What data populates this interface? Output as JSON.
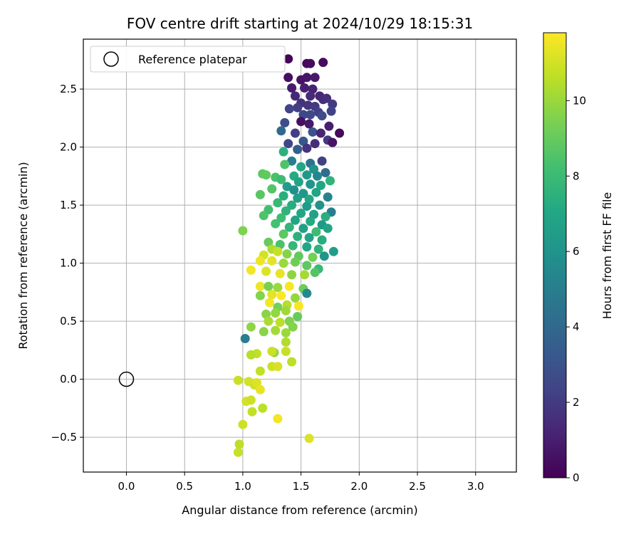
{
  "chart_data": {
    "type": "scatter",
    "title": "FOV centre drift starting at 2024/10/29 18:15:31",
    "xlabel": "Angular distance from reference (arcmin)",
    "ylabel": "Rotation from reference (arcmin)",
    "xlim": [
      -0.37,
      3.35
    ],
    "ylim": [
      -0.8,
      2.93
    ],
    "xticks": [
      "0.0",
      "0.5",
      "1.0",
      "1.5",
      "2.0",
      "2.5",
      "3.0"
    ],
    "xtick_values": [
      0.0,
      0.5,
      1.0,
      1.5,
      2.0,
      2.5,
      3.0
    ],
    "yticks": [
      "−0.5",
      "0.0",
      "0.5",
      "1.0",
      "1.5",
      "2.0",
      "2.5"
    ],
    "ytick_values": [
      -0.5,
      0.0,
      0.5,
      1.0,
      1.5,
      2.0,
      2.5
    ],
    "grid": true,
    "legend": {
      "position": "top-left",
      "entries": [
        "Reference platepar"
      ]
    },
    "reference_point": {
      "x": 0.0,
      "y": 0.0
    },
    "colorbar": {
      "label": "Hours from first FF file",
      "min": 0,
      "max": 11.8,
      "ticks": [
        "0",
        "2",
        "4",
        "6",
        "8",
        "10"
      ],
      "tick_values": [
        0,
        2,
        4,
        6,
        8,
        10
      ],
      "colormap": "viridis"
    },
    "points": [
      {
        "x": 1.39,
        "y": 2.76,
        "h": 0.1
      },
      {
        "x": 1.55,
        "y": 2.72,
        "h": 0.2
      },
      {
        "x": 1.58,
        "y": 2.72,
        "h": 0.3
      },
      {
        "x": 1.69,
        "y": 2.73,
        "h": 0.4
      },
      {
        "x": 1.39,
        "y": 2.6,
        "h": 0.5
      },
      {
        "x": 1.5,
        "y": 2.58,
        "h": 0.6
      },
      {
        "x": 1.55,
        "y": 2.6,
        "h": 0.7
      },
      {
        "x": 1.62,
        "y": 2.6,
        "h": 0.8
      },
      {
        "x": 1.42,
        "y": 2.51,
        "h": 0.9
      },
      {
        "x": 1.53,
        "y": 2.51,
        "h": 1.0
      },
      {
        "x": 1.6,
        "y": 2.5,
        "h": 1.1
      },
      {
        "x": 1.66,
        "y": 2.44,
        "h": 1.2
      },
      {
        "x": 1.45,
        "y": 2.44,
        "h": 1.3
      },
      {
        "x": 1.58,
        "y": 2.44,
        "h": 1.4
      },
      {
        "x": 1.69,
        "y": 2.41,
        "h": 1.5
      },
      {
        "x": 1.72,
        "y": 2.42,
        "h": 1.6
      },
      {
        "x": 1.5,
        "y": 2.38,
        "h": 1.7
      },
      {
        "x": 1.56,
        "y": 2.36,
        "h": 1.8
      },
      {
        "x": 1.62,
        "y": 2.35,
        "h": 1.9
      },
      {
        "x": 1.77,
        "y": 2.37,
        "h": 2.0
      },
      {
        "x": 1.47,
        "y": 2.34,
        "h": 2.1
      },
      {
        "x": 1.65,
        "y": 2.3,
        "h": 2.2
      },
      {
        "x": 1.76,
        "y": 2.31,
        "h": 2.3
      },
      {
        "x": 1.4,
        "y": 2.33,
        "h": 2.4
      },
      {
        "x": 1.52,
        "y": 2.28,
        "h": 2.5
      },
      {
        "x": 1.58,
        "y": 2.28,
        "h": 2.6
      },
      {
        "x": 1.68,
        "y": 2.27,
        "h": 2.7
      },
      {
        "x": 1.36,
        "y": 2.21,
        "h": 2.8
      },
      {
        "x": 1.5,
        "y": 2.22,
        "h": 0.5
      },
      {
        "x": 1.57,
        "y": 2.2,
        "h": 0.8
      },
      {
        "x": 1.74,
        "y": 2.18,
        "h": 1.0
      },
      {
        "x": 1.83,
        "y": 2.12,
        "h": 0.3
      },
      {
        "x": 1.33,
        "y": 2.14,
        "h": 4.0
      },
      {
        "x": 1.45,
        "y": 2.12,
        "h": 2.2
      },
      {
        "x": 1.6,
        "y": 2.13,
        "h": 3.0
      },
      {
        "x": 1.67,
        "y": 2.12,
        "h": 1.2
      },
      {
        "x": 1.39,
        "y": 2.03,
        "h": 2.5
      },
      {
        "x": 1.52,
        "y": 2.05,
        "h": 3.2
      },
      {
        "x": 1.62,
        "y": 2.03,
        "h": 1.5
      },
      {
        "x": 1.73,
        "y": 2.06,
        "h": 2.0
      },
      {
        "x": 1.77,
        "y": 2.04,
        "h": 0.6
      },
      {
        "x": 1.55,
        "y": 1.99,
        "h": 1.8
      },
      {
        "x": 1.47,
        "y": 1.98,
        "h": 3.5
      },
      {
        "x": 1.35,
        "y": 1.96,
        "h": 7.5
      },
      {
        "x": 1.42,
        "y": 1.88,
        "h": 5.0
      },
      {
        "x": 1.58,
        "y": 1.86,
        "h": 4.5
      },
      {
        "x": 1.68,
        "y": 1.88,
        "h": 2.2
      },
      {
        "x": 1.36,
        "y": 1.85,
        "h": 8.5
      },
      {
        "x": 1.5,
        "y": 1.83,
        "h": 7.0
      },
      {
        "x": 1.61,
        "y": 1.81,
        "h": 6.0
      },
      {
        "x": 1.71,
        "y": 1.78,
        "h": 4.2
      },
      {
        "x": 1.17,
        "y": 1.77,
        "h": 8.8
      },
      {
        "x": 1.28,
        "y": 1.74,
        "h": 8.4
      },
      {
        "x": 1.44,
        "y": 1.75,
        "h": 7.2
      },
      {
        "x": 1.55,
        "y": 1.76,
        "h": 6.3
      },
      {
        "x": 1.64,
        "y": 1.75,
        "h": 5.4
      },
      {
        "x": 1.75,
        "y": 1.71,
        "h": 7.6
      },
      {
        "x": 1.2,
        "y": 1.76,
        "h": 8.9
      },
      {
        "x": 1.33,
        "y": 1.72,
        "h": 8.0
      },
      {
        "x": 1.48,
        "y": 1.7,
        "h": 6.8
      },
      {
        "x": 1.58,
        "y": 1.68,
        "h": 6.1
      },
      {
        "x": 1.67,
        "y": 1.67,
        "h": 7.0
      },
      {
        "x": 1.38,
        "y": 1.66,
        "h": 6.5
      },
      {
        "x": 1.25,
        "y": 1.64,
        "h": 8.6
      },
      {
        "x": 1.44,
        "y": 1.63,
        "h": 5.8
      },
      {
        "x": 1.52,
        "y": 1.6,
        "h": 6.2
      },
      {
        "x": 1.63,
        "y": 1.61,
        "h": 6.9
      },
      {
        "x": 1.15,
        "y": 1.59,
        "h": 8.7
      },
      {
        "x": 1.35,
        "y": 1.58,
        "h": 7.4
      },
      {
        "x": 1.47,
        "y": 1.56,
        "h": 6.6
      },
      {
        "x": 1.57,
        "y": 1.55,
        "h": 7.1
      },
      {
        "x": 1.73,
        "y": 1.57,
        "h": 5.2
      },
      {
        "x": 1.3,
        "y": 1.52,
        "h": 7.9
      },
      {
        "x": 1.42,
        "y": 1.5,
        "h": 7.3
      },
      {
        "x": 1.55,
        "y": 1.49,
        "h": 6.4
      },
      {
        "x": 1.66,
        "y": 1.5,
        "h": 6.0
      },
      {
        "x": 1.76,
        "y": 1.44,
        "h": 5.0
      },
      {
        "x": 1.22,
        "y": 1.46,
        "h": 8.2
      },
      {
        "x": 1.37,
        "y": 1.45,
        "h": 7.6
      },
      {
        "x": 1.5,
        "y": 1.43,
        "h": 7.0
      },
      {
        "x": 1.61,
        "y": 1.42,
        "h": 6.7
      },
      {
        "x": 1.71,
        "y": 1.4,
        "h": 7.4
      },
      {
        "x": 1.18,
        "y": 1.41,
        "h": 8.5
      },
      {
        "x": 1.33,
        "y": 1.39,
        "h": 8.1
      },
      {
        "x": 1.45,
        "y": 1.37,
        "h": 6.9
      },
      {
        "x": 1.58,
        "y": 1.36,
        "h": 7.2
      },
      {
        "x": 1.68,
        "y": 1.33,
        "h": 6.3
      },
      {
        "x": 1.28,
        "y": 1.34,
        "h": 8.3
      },
      {
        "x": 1.4,
        "y": 1.31,
        "h": 7.7
      },
      {
        "x": 1.52,
        "y": 1.3,
        "h": 6.6
      },
      {
        "x": 1.63,
        "y": 1.27,
        "h": 8.0
      },
      {
        "x": 1.73,
        "y": 1.3,
        "h": 6.8
      },
      {
        "x": 1.0,
        "y": 1.28,
        "h": 9.5
      },
      {
        "x": 1.35,
        "y": 1.25,
        "h": 8.8
      },
      {
        "x": 1.47,
        "y": 1.23,
        "h": 7.5
      },
      {
        "x": 1.57,
        "y": 1.22,
        "h": 6.9
      },
      {
        "x": 1.68,
        "y": 1.2,
        "h": 7.3
      },
      {
        "x": 1.22,
        "y": 1.18,
        "h": 9.0
      },
      {
        "x": 1.32,
        "y": 1.16,
        "h": 8.4
      },
      {
        "x": 1.43,
        "y": 1.15,
        "h": 7.8
      },
      {
        "x": 1.55,
        "y": 1.14,
        "h": 7.0
      },
      {
        "x": 1.65,
        "y": 1.12,
        "h": 7.6
      },
      {
        "x": 1.78,
        "y": 1.1,
        "h": 6.5
      },
      {
        "x": 1.25,
        "y": 1.12,
        "h": 10.4
      },
      {
        "x": 1.18,
        "y": 1.07,
        "h": 11.0
      },
      {
        "x": 1.3,
        "y": 1.1,
        "h": 10.8
      },
      {
        "x": 1.38,
        "y": 1.08,
        "h": 9.6
      },
      {
        "x": 1.48,
        "y": 1.06,
        "h": 8.9
      },
      {
        "x": 1.6,
        "y": 1.05,
        "h": 9.3
      },
      {
        "x": 1.7,
        "y": 1.06,
        "h": 6.1
      },
      {
        "x": 1.15,
        "y": 1.02,
        "h": 11.5
      },
      {
        "x": 1.25,
        "y": 1.02,
        "h": 11.3
      },
      {
        "x": 1.35,
        "y": 1.0,
        "h": 10.0
      },
      {
        "x": 1.45,
        "y": 1.01,
        "h": 9.2
      },
      {
        "x": 1.55,
        "y": 0.98,
        "h": 8.8
      },
      {
        "x": 1.65,
        "y": 0.95,
        "h": 7.9
      },
      {
        "x": 1.07,
        "y": 0.94,
        "h": 11.6
      },
      {
        "x": 1.2,
        "y": 0.93,
        "h": 11.2
      },
      {
        "x": 1.32,
        "y": 0.91,
        "h": 11.4
      },
      {
        "x": 1.42,
        "y": 0.9,
        "h": 9.8
      },
      {
        "x": 1.53,
        "y": 0.9,
        "h": 10.2
      },
      {
        "x": 1.62,
        "y": 0.92,
        "h": 8.6
      },
      {
        "x": 1.15,
        "y": 0.8,
        "h": 11.5
      },
      {
        "x": 1.22,
        "y": 0.8,
        "h": 9.4
      },
      {
        "x": 1.3,
        "y": 0.79,
        "h": 10.0
      },
      {
        "x": 1.4,
        "y": 0.8,
        "h": 11.7
      },
      {
        "x": 1.52,
        "y": 0.78,
        "h": 9.1
      },
      {
        "x": 1.15,
        "y": 0.72,
        "h": 9.6
      },
      {
        "x": 1.25,
        "y": 0.73,
        "h": 11.3
      },
      {
        "x": 1.33,
        "y": 0.72,
        "h": 11.8
      },
      {
        "x": 1.45,
        "y": 0.7,
        "h": 9.9
      },
      {
        "x": 1.55,
        "y": 0.74,
        "h": 5.5
      },
      {
        "x": 1.23,
        "y": 0.66,
        "h": 11.6
      },
      {
        "x": 1.38,
        "y": 0.64,
        "h": 10.5
      },
      {
        "x": 1.48,
        "y": 0.63,
        "h": 11.7
      },
      {
        "x": 1.3,
        "y": 0.62,
        "h": 9.3
      },
      {
        "x": 1.2,
        "y": 0.56,
        "h": 9.7
      },
      {
        "x": 1.28,
        "y": 0.57,
        "h": 9.9
      },
      {
        "x": 1.37,
        "y": 0.59,
        "h": 10.1
      },
      {
        "x": 1.47,
        "y": 0.54,
        "h": 9.0
      },
      {
        "x": 1.22,
        "y": 0.5,
        "h": 10.3
      },
      {
        "x": 1.32,
        "y": 0.49,
        "h": 10.6
      },
      {
        "x": 1.4,
        "y": 0.5,
        "h": 9.5
      },
      {
        "x": 1.07,
        "y": 0.45,
        "h": 9.8
      },
      {
        "x": 1.18,
        "y": 0.41,
        "h": 9.7
      },
      {
        "x": 1.28,
        "y": 0.42,
        "h": 10.2
      },
      {
        "x": 1.37,
        "y": 0.4,
        "h": 10.0
      },
      {
        "x": 1.43,
        "y": 0.45,
        "h": 9.6
      },
      {
        "x": 1.02,
        "y": 0.35,
        "h": 5.0
      },
      {
        "x": 1.37,
        "y": 0.32,
        "h": 10.4
      },
      {
        "x": 1.12,
        "y": 0.22,
        "h": 10.7
      },
      {
        "x": 1.07,
        "y": 0.21,
        "h": 10.5
      },
      {
        "x": 1.27,
        "y": 0.23,
        "h": 9.8
      },
      {
        "x": 1.25,
        "y": 0.24,
        "h": 10.9
      },
      {
        "x": 1.37,
        "y": 0.24,
        "h": 10.8
      },
      {
        "x": 1.42,
        "y": 0.15,
        "h": 10.6
      },
      {
        "x": 1.25,
        "y": 0.11,
        "h": 10.9
      },
      {
        "x": 1.3,
        "y": 0.11,
        "h": 11.1
      },
      {
        "x": 1.15,
        "y": 0.07,
        "h": 10.7
      },
      {
        "x": 0.96,
        "y": -0.01,
        "h": 10.8
      },
      {
        "x": 1.05,
        "y": -0.02,
        "h": 11.0
      },
      {
        "x": 1.1,
        "y": -0.05,
        "h": 10.9
      },
      {
        "x": 1.12,
        "y": -0.03,
        "h": 11.2
      },
      {
        "x": 1.15,
        "y": -0.09,
        "h": 11.4
      },
      {
        "x": 1.03,
        "y": -0.19,
        "h": 11.0
      },
      {
        "x": 1.07,
        "y": -0.18,
        "h": 10.9
      },
      {
        "x": 1.08,
        "y": -0.28,
        "h": 10.7
      },
      {
        "x": 1.17,
        "y": -0.25,
        "h": 10.6
      },
      {
        "x": 1.3,
        "y": -0.34,
        "h": 11.6
      },
      {
        "x": 1.0,
        "y": -0.39,
        "h": 10.9
      },
      {
        "x": 0.97,
        "y": -0.56,
        "h": 10.6
      },
      {
        "x": 0.96,
        "y": -0.63,
        "h": 10.8
      },
      {
        "x": 1.57,
        "y": -0.51,
        "h": 11.2
      }
    ]
  }
}
